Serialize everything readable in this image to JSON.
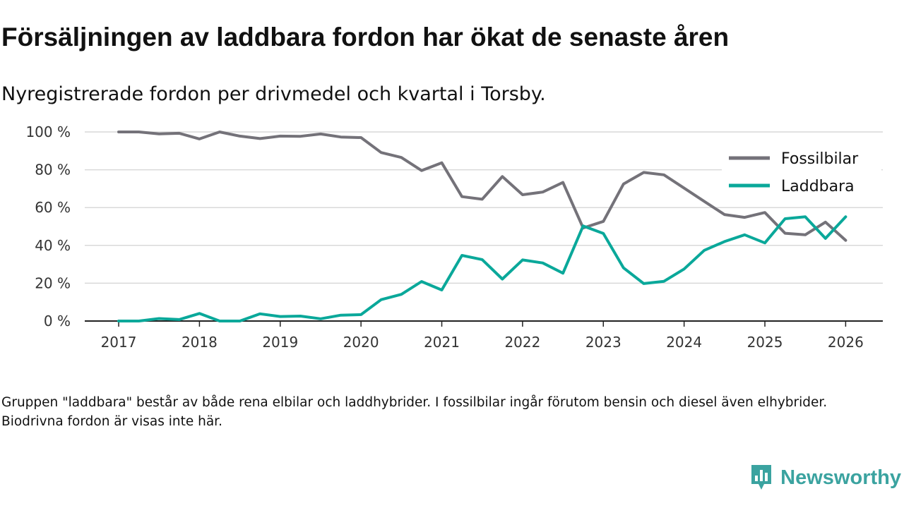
{
  "header": {
    "title": "Försäljningen av laddbara fordon har ökat de senaste åren",
    "subtitle": "Nyregistrerade fordon per drivmedel och kvartal i Torsby."
  },
  "footer": {
    "note": "Gruppen \"laddbara\" består av både rena elbilar och laddhybrider. I fossilbilar ingår förutom bensin och diesel även elhybrider. Biodrivna fordon är visas inte här.",
    "brand": "Newsworthy"
  },
  "colors": {
    "fossil": "#747279",
    "laddbara": "#0aa89a",
    "grid": "#d9d9d9",
    "axis": "#222222",
    "brand": "#3ba3a0"
  },
  "chart_data": {
    "type": "line",
    "title": "Försäljningen av laddbara fordon har ökat de senaste åren",
    "subtitle": "Nyregistrerade fordon per drivmedel och kvartal i Torsby.",
    "xlabel": "",
    "ylabel": "",
    "xlim": [
      2016.58,
      2026.46
    ],
    "ylim": [
      0,
      100
    ],
    "x_ticks": [
      2017,
      2018,
      2019,
      2020,
      2021,
      2022,
      2023,
      2024,
      2025,
      2026
    ],
    "y_ticks": [
      0,
      20,
      40,
      60,
      80,
      100
    ],
    "y_tick_labels": [
      "0 %",
      "20 %",
      "40 %",
      "60 %",
      "80 %",
      "100 %"
    ],
    "grid": true,
    "legend_position": "top-right",
    "x": [
      2017,
      2017.25,
      2017.5,
      2017.75,
      2018,
      2018.25,
      2018.5,
      2018.75,
      2019,
      2019.25,
      2019.5,
      2019.75,
      2020,
      2020.25,
      2020.5,
      2020.75,
      2021,
      2021.25,
      2021.5,
      2021.75,
      2022,
      2022.25,
      2022.5,
      2022.75,
      2023,
      2023.25,
      2023.5,
      2023.75,
      2024,
      2024.25,
      2024.5,
      2024.75,
      2025,
      2025.25,
      2025.5,
      2025.75,
      2026
    ],
    "series": [
      {
        "name": "Fossilbilar",
        "color": "#747279",
        "values": [
          100,
          100,
          99,
          99.3,
          96.3,
          100,
          97.8,
          96.5,
          97.8,
          97.7,
          98.9,
          97.3,
          97,
          89.1,
          86.5,
          79.6,
          83.7,
          65.8,
          64.4,
          76.4,
          66.8,
          68.2,
          73.3,
          49.2,
          52.7,
          72.5,
          78.6,
          77.3,
          70.3,
          63.3,
          56.3,
          54.8,
          57.4,
          46.4,
          45.6,
          52.3,
          42.7
        ]
      },
      {
        "name": "Laddbara",
        "color": "#0aa89a",
        "values": [
          0,
          0,
          1.3,
          0.8,
          4,
          0,
          0,
          3.8,
          2.4,
          2.6,
          1.2,
          3.1,
          3.4,
          11.3,
          14.1,
          20.9,
          16.4,
          34.7,
          32.5,
          22.2,
          32.3,
          30.7,
          25.3,
          50.3,
          46.3,
          28.1,
          19.8,
          21,
          27.5,
          37.4,
          42,
          45.6,
          41.3,
          54.1,
          55.1,
          43.7,
          55.1
        ]
      }
    ]
  }
}
